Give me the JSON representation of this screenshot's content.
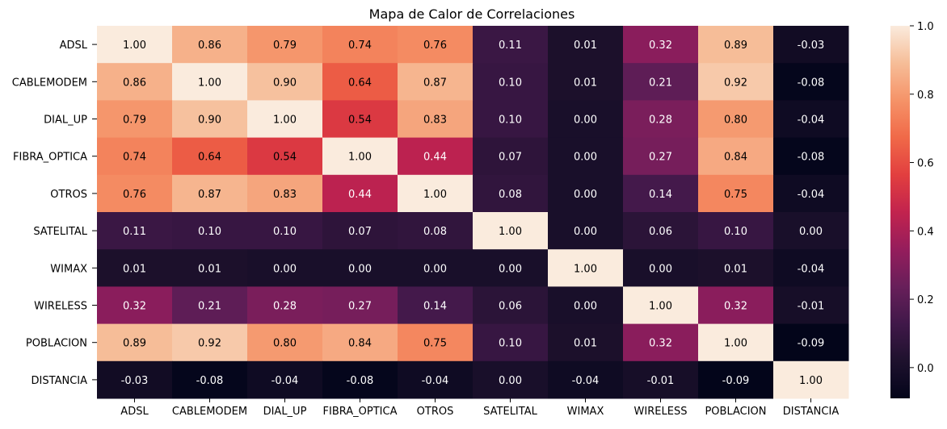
{
  "chart_data": {
    "type": "heatmap",
    "title": "Mapa de Calor de Correlaciones",
    "xlabel": "",
    "ylabel": "",
    "row_labels": [
      "ADSL",
      "CABLEMODEM",
      "DIAL_UP",
      "FIBRA_OPTICA",
      "OTROS",
      "SATELITAL",
      "WIMAX",
      "WIRELESS",
      "POBLACION",
      "DISTANCIA"
    ],
    "col_labels": [
      "ADSL",
      "CABLEMODEM",
      "DIAL_UP",
      "FIBRA_OPTICA",
      "OTROS",
      "SATELITAL",
      "WIMAX",
      "WIRELESS",
      "POBLACION",
      "DISTANCIA"
    ],
    "values": [
      [
        1.0,
        0.86,
        0.79,
        0.74,
        0.76,
        0.11,
        0.01,
        0.32,
        0.89,
        -0.03
      ],
      [
        0.86,
        1.0,
        0.9,
        0.64,
        0.87,
        0.1,
        0.01,
        0.21,
        0.92,
        -0.08
      ],
      [
        0.79,
        0.9,
        1.0,
        0.54,
        0.83,
        0.1,
        -0.0,
        0.28,
        0.8,
        -0.04
      ],
      [
        0.74,
        0.64,
        0.54,
        1.0,
        0.44,
        0.07,
        0.0,
        0.27,
        0.84,
        -0.08
      ],
      [
        0.76,
        0.87,
        0.83,
        0.44,
        1.0,
        0.08,
        0.0,
        0.14,
        0.75,
        -0.04
      ],
      [
        0.11,
        0.1,
        0.1,
        0.07,
        0.08,
        1.0,
        -0.0,
        0.06,
        0.1,
        0.0
      ],
      [
        0.01,
        0.01,
        -0.0,
        0.0,
        0.0,
        -0.0,
        1.0,
        0.0,
        0.01,
        -0.04
      ],
      [
        0.32,
        0.21,
        0.28,
        0.27,
        0.14,
        0.06,
        0.0,
        1.0,
        0.32,
        -0.01
      ],
      [
        0.89,
        0.92,
        0.8,
        0.84,
        0.75,
        0.1,
        0.01,
        0.32,
        1.0,
        -0.09
      ],
      [
        -0.03,
        -0.08,
        -0.04,
        -0.08,
        -0.04,
        0.0,
        -0.04,
        -0.01,
        -0.09,
        1.0
      ]
    ],
    "value_format": "2 decimals",
    "colormap": "rocket",
    "vmin": -0.09,
    "vmax": 1.0,
    "colorbar_ticks": [
      "0.0",
      "0.2",
      "0.4",
      "0.6",
      "0.8",
      "1.0"
    ],
    "grid": false,
    "legend": "colorbar right"
  }
}
